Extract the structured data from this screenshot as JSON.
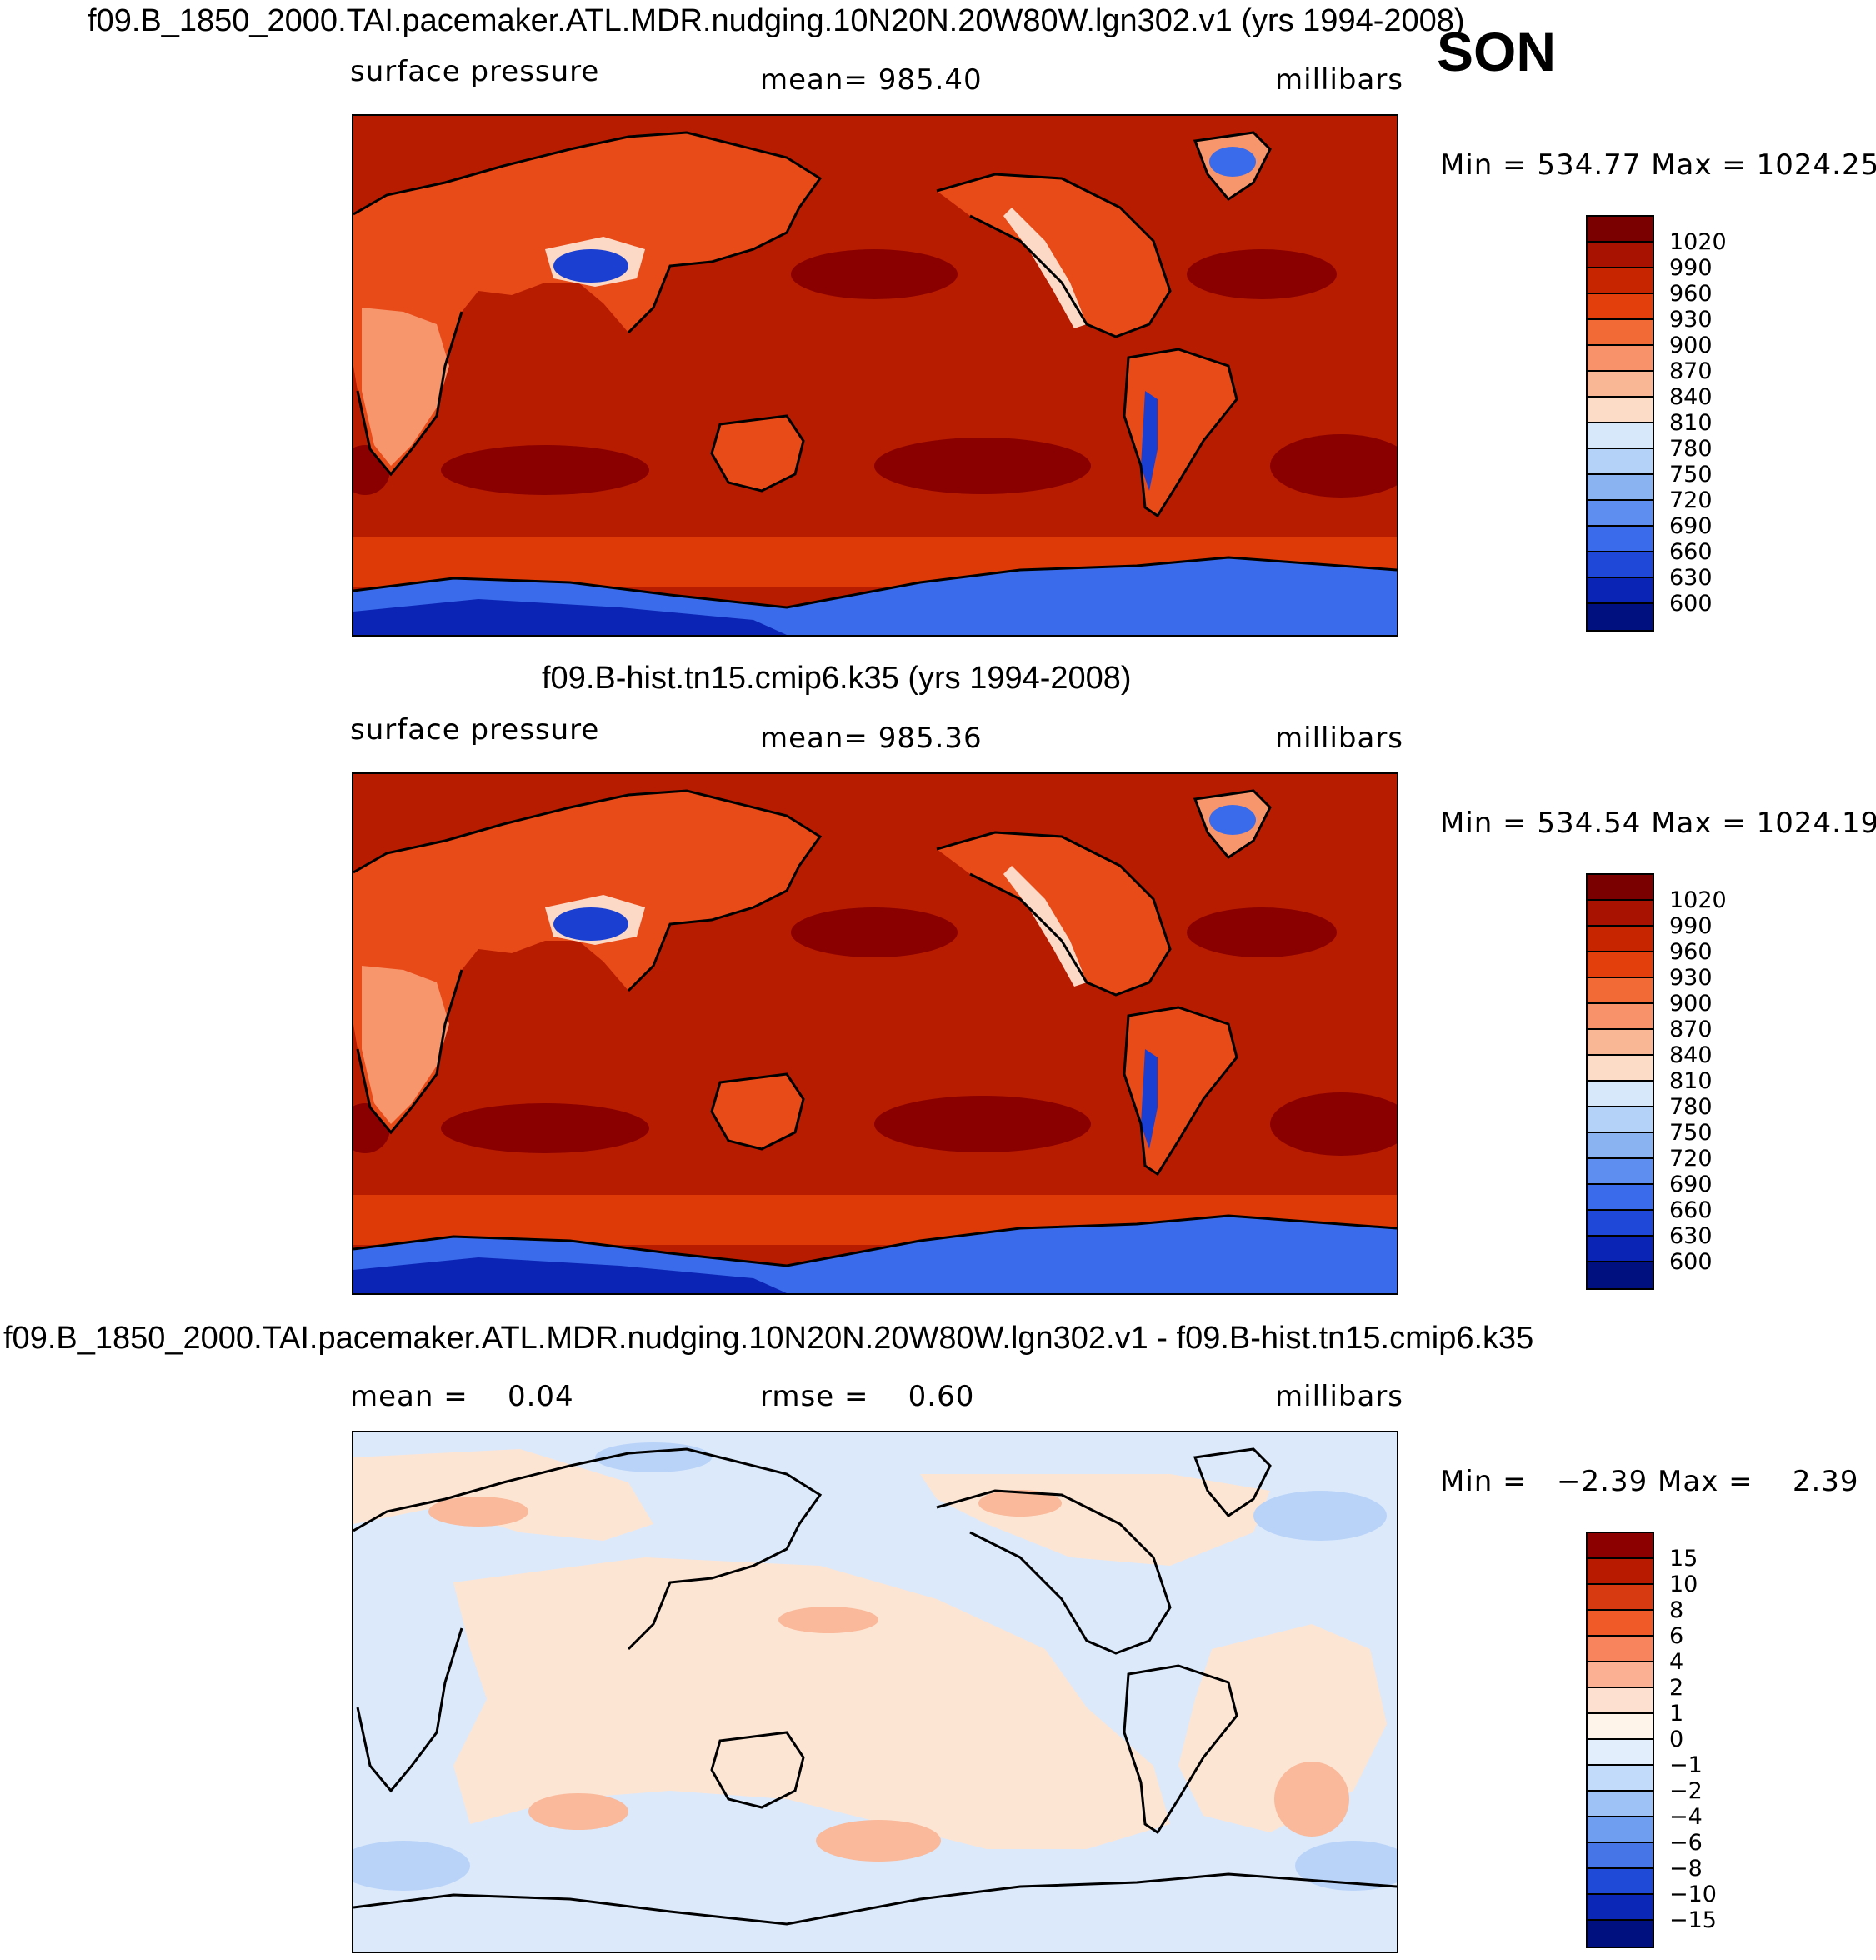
{
  "season": "SON",
  "panels": [
    {
      "title": "f09.B_1850_2000.TAI.pacemaker.ATL.MDR.nudging.10N20N.20W80W.lgn302.v1 (yrs 1994-2008)",
      "left_label": "surface pressure",
      "center_label": "mean= 985.40",
      "right_label": "millibars",
      "minmax": "Min = 534.77 Max = 1024.25",
      "colorbar": {
        "labels": [
          "1020",
          "990",
          "960",
          "930",
          "900",
          "870",
          "840",
          "810",
          "780",
          "750",
          "720",
          "690",
          "660",
          "630",
          "600"
        ],
        "colors": [
          "#7a0000",
          "#a81200",
          "#c72500",
          "#e23f0c",
          "#f26a36",
          "#f7926a",
          "#fab796",
          "#fcdcc6",
          "#d7e8fb",
          "#b4d1f8",
          "#8ab3f2",
          "#5e8ef0",
          "#3a6bea",
          "#1f47d8",
          "#0a25b5",
          "#00107e"
        ]
      }
    },
    {
      "title": "f09.B-hist.tn15.cmip6.k35 (yrs 1994-2008)",
      "left_label": "surface pressure",
      "center_label": "mean= 985.36",
      "right_label": "millibars",
      "minmax": "Min = 534.54 Max = 1024.19",
      "colorbar": {
        "labels": [
          "1020",
          "990",
          "960",
          "930",
          "900",
          "870",
          "840",
          "810",
          "780",
          "750",
          "720",
          "690",
          "660",
          "630",
          "600"
        ],
        "colors": [
          "#7a0000",
          "#a81200",
          "#c72500",
          "#e23f0c",
          "#f26a36",
          "#f7926a",
          "#fab796",
          "#fcdcc6",
          "#d7e8fb",
          "#b4d1f8",
          "#8ab3f2",
          "#5e8ef0",
          "#3a6bea",
          "#1f47d8",
          "#0a25b5",
          "#00107e"
        ]
      }
    },
    {
      "title": "f09.B_1850_2000.TAI.pacemaker.ATL.MDR.nudging.10N20N.20W80W.lgn302.v1 - f09.B-hist.tn15.cmip6.k35",
      "left_label": "mean =    0.04",
      "center_label": "rmse =    0.60",
      "right_label": "millibars",
      "minmax": "Min =   −2.39 Max =    2.39",
      "colorbar": {
        "labels": [
          "15",
          "10",
          "8",
          "6",
          "4",
          "2",
          "1",
          "0",
          "−1",
          "−2",
          "−4",
          "−6",
          "−8",
          "−10",
          "−15"
        ],
        "colors": [
          "#8c0000",
          "#b81a00",
          "#d73a10",
          "#f05a28",
          "#f7845c",
          "#fbb093",
          "#fde0cf",
          "#fff4ea",
          "#e2eefc",
          "#c3dbfa",
          "#9ec2f6",
          "#6f9ef0",
          "#4575e6",
          "#1f4ad8",
          "#0a27b8",
          "#00107e"
        ]
      }
    }
  ],
  "map_colors": {
    "ocean_high": "#b71c00",
    "ocean_core": "#8a0000",
    "southern_band": "#dd3a08",
    "antarctica_deep": "#0b24b5",
    "antarctica_mid": "#3a6bea",
    "land_high": "#e84a18",
    "land_mid": "#f7956c",
    "land_low": "#fbd9c6",
    "plateau": "#1b3fd0",
    "diff_pos": "#fde5d4",
    "diff_pos_strong": "#f9b99a",
    "diff_neg": "#dbe9fb",
    "diff_neg_strong": "#b9d3f8"
  },
  "icons": [
    "coastline-map"
  ]
}
